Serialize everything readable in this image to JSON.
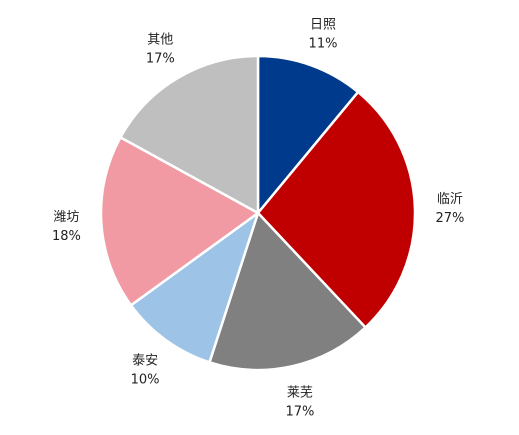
{
  "chart_data": {
    "type": "pie",
    "title": "",
    "start_angle_deg": 0,
    "direction": "clockwise",
    "legend": "none",
    "slices": [
      {
        "label": "日照",
        "value": 11,
        "value_text": "11%",
        "color": "#003A8C"
      },
      {
        "label": "临沂",
        "value": 27,
        "value_text": "27%",
        "color": "#C00000"
      },
      {
        "label": "莱芜",
        "value": 17,
        "value_text": "17%",
        "color": "#808080"
      },
      {
        "label": "泰安",
        "value": 10,
        "value_text": "10%",
        "color": "#9DC3E6"
      },
      {
        "label": "潍坊",
        "value": 18,
        "value_text": "18%",
        "color": "#F19AA4"
      },
      {
        "label": "其他",
        "value": 17,
        "value_text": "17%",
        "color": "#BFBFBF"
      }
    ]
  }
}
